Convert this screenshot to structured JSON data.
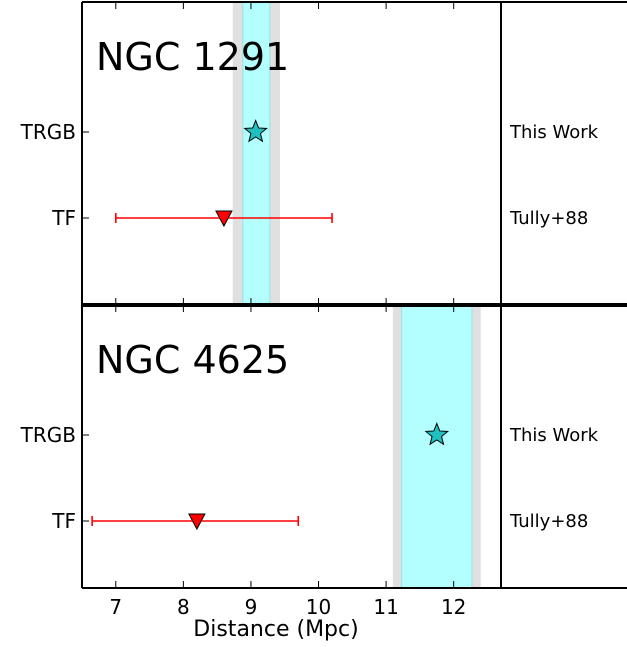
{
  "chart_data": [
    {
      "type": "scatter",
      "title": "NGC 1291",
      "categories": [
        "TRGB",
        "TF"
      ],
      "x_axis": {
        "label": "Distance (Mpc)",
        "xlim": [
          6.5,
          12.7
        ],
        "ticks": [
          7,
          8,
          9,
          10,
          11,
          12
        ]
      },
      "bands": {
        "inner": [
          8.88,
          9.28
        ],
        "outer": [
          8.73,
          9.43
        ]
      },
      "points": [
        {
          "category": "TRGB",
          "x": 9.07,
          "marker": "star",
          "color": "#20c0c0",
          "reference": "This Work"
        },
        {
          "category": "TF",
          "x": 8.6,
          "xerr_low": 7.0,
          "xerr_high": 10.2,
          "marker": "triangle-down",
          "color": "#ff0000",
          "reference": "Tully+88"
        }
      ]
    },
    {
      "type": "scatter",
      "title": "NGC 4625",
      "categories": [
        "TRGB",
        "TF"
      ],
      "x_axis": {
        "label": "Distance (Mpc)",
        "xlim": [
          6.5,
          12.7
        ],
        "ticks": [
          7,
          8,
          9,
          10,
          11,
          12
        ]
      },
      "bands": {
        "inner": [
          11.23,
          12.27
        ],
        "outer": [
          11.1,
          12.4
        ]
      },
      "points": [
        {
          "category": "TRGB",
          "x": 11.75,
          "marker": "star",
          "color": "#20c0c0",
          "reference": "This Work"
        },
        {
          "category": "TF",
          "x": 8.2,
          "xerr_low": 6.65,
          "xerr_high": 9.7,
          "marker": "triangle-down",
          "color": "#ff0000",
          "reference": "Tully+88"
        }
      ]
    }
  ],
  "colors": {
    "band_inner": "#b3ffff",
    "band_outer": "#e0e0e0",
    "errorbar": "#ff0000",
    "star": "#20c0c0",
    "triangle": "#ff0000"
  }
}
